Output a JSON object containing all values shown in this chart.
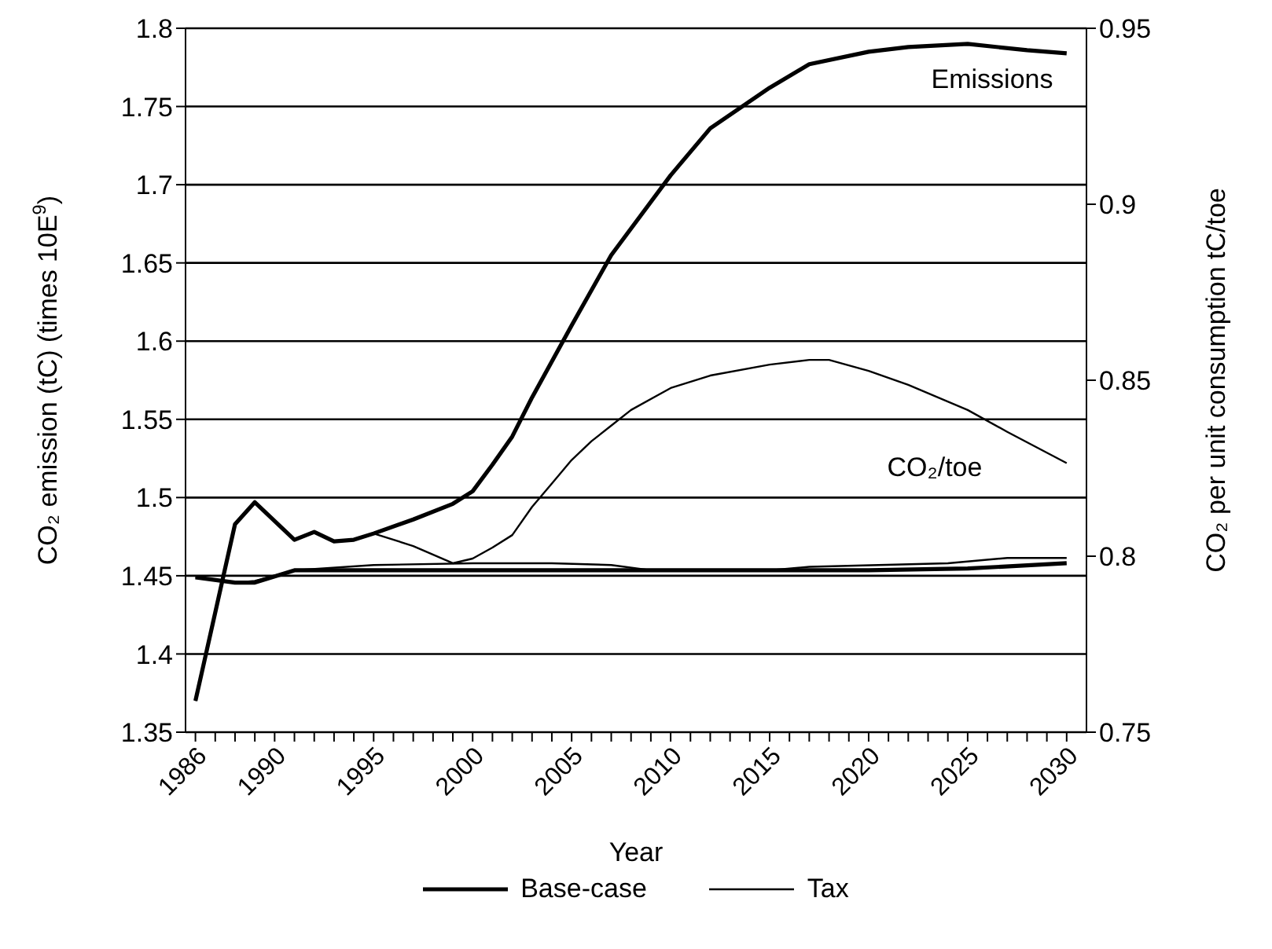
{
  "chart_data": {
    "type": "line",
    "xlabel": "Year",
    "ylabel": "CO₂ emission (tC) (times 10E$^{9}$)",
    "y2label": "CO₂ per unit consumption tC/toe",
    "xlim": [
      1985.5,
      2031
    ],
    "xticks": [
      1986,
      {
        "value": 1987,
        "label": null
      },
      {
        "value": 1988,
        "label": null
      },
      {
        "value": 1989,
        "label": null
      },
      1990,
      {
        "value": 1991,
        "label": null
      },
      {
        "value": 1992,
        "label": null
      },
      {
        "value": 1993,
        "label": null
      },
      {
        "value": 1994,
        "label": null
      },
      1995,
      {
        "value": 1996,
        "label": null
      },
      {
        "value": 1997,
        "label": null
      },
      {
        "value": 1998,
        "label": null
      },
      {
        "value": 1999,
        "label": null
      },
      2000,
      {
        "value": 2001,
        "label": null
      },
      {
        "value": 2002,
        "label": null
      },
      {
        "value": 2003,
        "label": null
      },
      {
        "value": 2004,
        "label": null
      },
      2005,
      {
        "value": 2006,
        "label": null
      },
      {
        "value": 2007,
        "label": null
      },
      {
        "value": 2008,
        "label": null
      },
      {
        "value": 2009,
        "label": null
      },
      2010,
      {
        "value": 2011,
        "label": null
      },
      {
        "value": 2012,
        "label": null
      },
      {
        "value": 2013,
        "label": null
      },
      {
        "value": 2014,
        "label": null
      },
      2015,
      {
        "value": 2016,
        "label": null
      },
      {
        "value": 2017,
        "label": null
      },
      {
        "value": 2018,
        "label": null
      },
      {
        "value": 2019,
        "label": null
      },
      2020,
      {
        "value": 2021,
        "label": null
      },
      {
        "value": 2022,
        "label": null
      },
      {
        "value": 2023,
        "label": null
      },
      {
        "value": 2024,
        "label": null
      },
      2025,
      {
        "value": 2026,
        "label": null
      },
      {
        "value": 2027,
        "label": null
      },
      {
        "value": 2028,
        "label": null
      },
      {
        "value": 2029,
        "label": null
      },
      2030
    ],
    "ylim": [
      1.35,
      1.8
    ],
    "yticks": [
      1.35,
      1.4,
      1.45,
      1.5,
      1.55,
      1.6,
      1.65,
      1.7,
      1.75,
      1.8
    ],
    "y2lim": [
      0.75,
      0.95
    ],
    "y2ticks": [
      0.75,
      0.8,
      0.85,
      0.9,
      0.95
    ],
    "grid": "y",
    "legend": "bottom",
    "marker": "none",
    "line_style": "solid",
    "annotations": [
      "Emissions",
      "CO₂/toe"
    ],
    "series": [
      {
        "name": "Base-case",
        "color": "#000000",
        "x": [
          1986,
          1988,
          1989,
          1991,
          1992,
          1993,
          1994,
          1995,
          1997,
          1999,
          2000,
          2001,
          2002,
          2003,
          2005,
          2007,
          2010,
          2012,
          2015,
          2017,
          2020,
          2022,
          2025,
          2028,
          2030
        ],
        "values": [
          1.37,
          1.483,
          1.497,
          1.473,
          1.478,
          1.472,
          1.473,
          1.477,
          1.486,
          1.496,
          1.504,
          1.521,
          1.539,
          1.564,
          1.61,
          1.655,
          1.706,
          1.736,
          1.762,
          1.777,
          1.785,
          1.788,
          1.79,
          1.786,
          1.784
        ]
      },
      {
        "name": "Tax",
        "color": "#000000",
        "x": [
          1986,
          1988,
          1989,
          1991,
          1992,
          1993,
          1994,
          1995,
          1997,
          1999,
          2000,
          2001,
          2002,
          2003,
          2004,
          2005,
          2006,
          2007,
          2008,
          2010,
          2012,
          2015,
          2017,
          2018,
          2020,
          2022,
          2025,
          2027,
          2030
        ],
        "values": [
          1.37,
          1.483,
          1.497,
          1.473,
          1.478,
          1.472,
          1.473,
          1.477,
          1.469,
          1.458,
          1.461,
          1.468,
          1.476,
          1.494,
          1.509,
          1.524,
          1.536,
          1.546,
          1.556,
          1.57,
          1.578,
          1.585,
          1.588,
          1.588,
          1.581,
          1.572,
          1.556,
          1.542,
          1.522
        ]
      },
      {
        "color": "#000000",
        "axis": "y2",
        "x": [
          1986,
          1988,
          1989,
          1991,
          1995,
          2000,
          2010,
          2020,
          2025,
          2030
        ],
        "values": [
          0.794,
          0.7925,
          0.7925,
          0.796,
          0.796,
          0.796,
          0.796,
          0.796,
          0.7965,
          0.798
        ]
      },
      {
        "color": "#000000",
        "axis": "y2",
        "x": [
          1986,
          1988,
          1989,
          1991,
          1995,
          2000,
          2004,
          2007,
          2009,
          2015,
          2017,
          2024,
          2027,
          2030
        ],
        "values": [
          0.794,
          0.7925,
          0.793,
          0.796,
          0.7975,
          0.798,
          0.798,
          0.7975,
          0.796,
          0.796,
          0.797,
          0.798,
          0.7995,
          0.7995
        ]
      }
    ]
  }
}
